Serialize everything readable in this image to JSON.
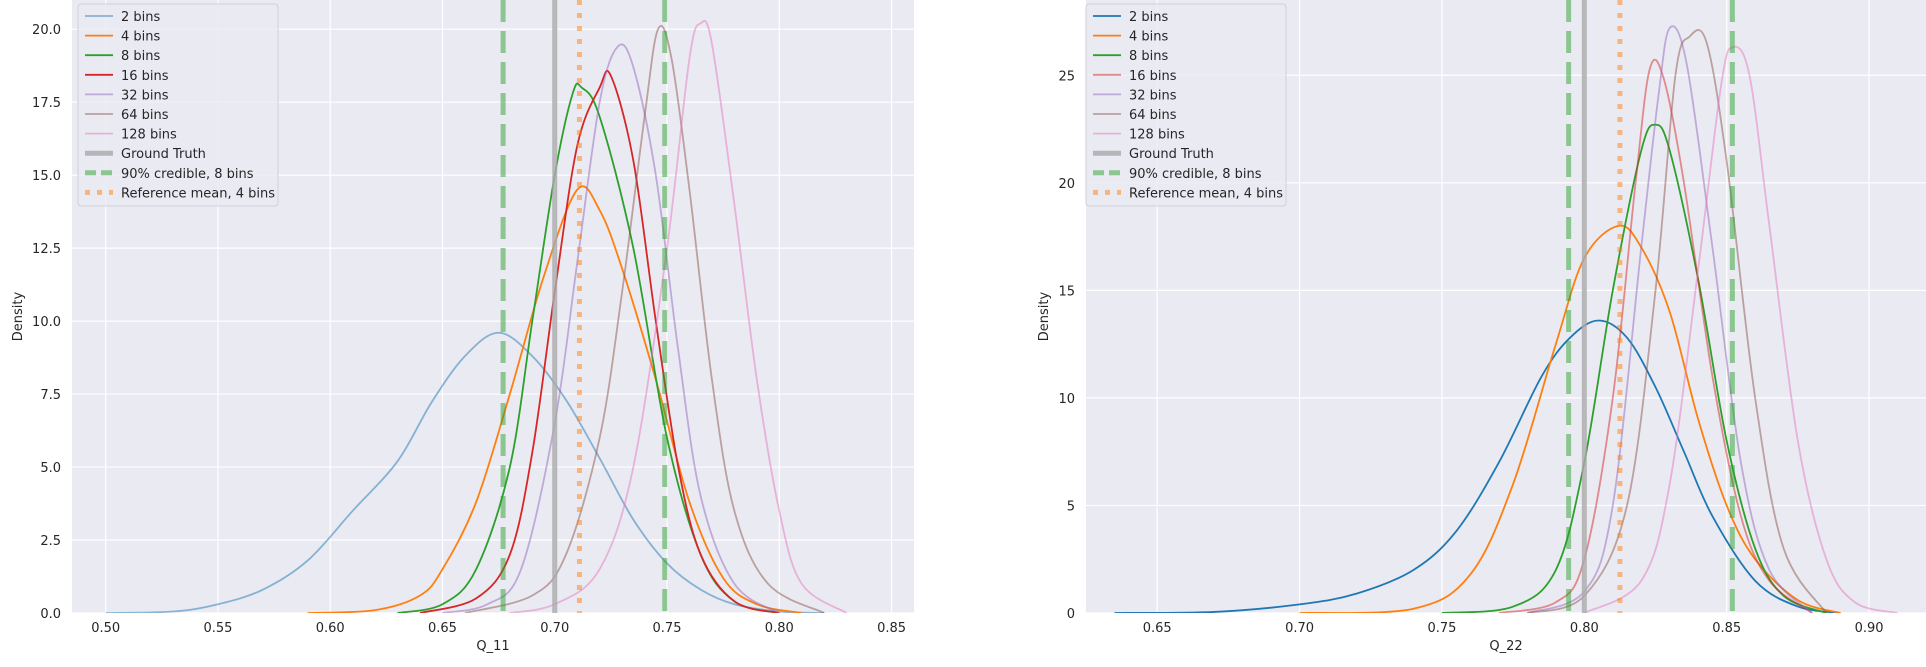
{
  "chart_data": [
    {
      "type": "line",
      "subtype": "kde",
      "xlabel": "Q_11",
      "ylabel": "Density",
      "xlim": [
        0.485,
        0.86
      ],
      "ylim": [
        0,
        21.0
      ],
      "xticks": [
        "0.50",
        "0.55",
        "0.60",
        "0.65",
        "0.70",
        "0.75",
        "0.80",
        "0.85"
      ],
      "yticks": [
        "0.0",
        "2.5",
        "5.0",
        "7.5",
        "10.0",
        "12.5",
        "15.0",
        "17.5",
        "20.0"
      ],
      "grid": true,
      "legend_position": "upper-left",
      "series": [
        {
          "name": "2 bins",
          "color": "#1f77b4",
          "alpha": 0.5,
          "points": [
            [
              0.5,
              0
            ],
            [
              0.53,
              0.05
            ],
            [
              0.55,
              0.3
            ],
            [
              0.57,
              0.8
            ],
            [
              0.59,
              1.8
            ],
            [
              0.61,
              3.5
            ],
            [
              0.63,
              5.2
            ],
            [
              0.645,
              7.2
            ],
            [
              0.66,
              8.8
            ],
            [
              0.675,
              9.6
            ],
            [
              0.69,
              8.8
            ],
            [
              0.705,
              7.3
            ],
            [
              0.72,
              5.3
            ],
            [
              0.735,
              3.2
            ],
            [
              0.75,
              1.7
            ],
            [
              0.765,
              0.8
            ],
            [
              0.78,
              0.3
            ],
            [
              0.8,
              0.05
            ],
            [
              0.82,
              0
            ]
          ]
        },
        {
          "name": "4 bins",
          "color": "#ff7f0e",
          "alpha": 1.0,
          "points": [
            [
              0.59,
              0
            ],
            [
              0.62,
              0.1
            ],
            [
              0.64,
              0.6
            ],
            [
              0.65,
              1.5
            ],
            [
              0.665,
              3.8
            ],
            [
              0.68,
              7.5
            ],
            [
              0.695,
              11.5
            ],
            [
              0.71,
              14.5
            ],
            [
              0.72,
              13.8
            ],
            [
              0.73,
              11.8
            ],
            [
              0.745,
              8.0
            ],
            [
              0.76,
              3.8
            ],
            [
              0.775,
              1.2
            ],
            [
              0.79,
              0.3
            ],
            [
              0.81,
              0
            ]
          ]
        },
        {
          "name": "8 bins",
          "color": "#2ca02c",
          "alpha": 1.0,
          "points": [
            [
              0.63,
              0
            ],
            [
              0.65,
              0.3
            ],
            [
              0.665,
              1.5
            ],
            [
              0.68,
              5.0
            ],
            [
              0.69,
              10.0
            ],
            [
              0.7,
              15.0
            ],
            [
              0.708,
              17.8
            ],
            [
              0.712,
              18.0
            ],
            [
              0.72,
              17.0
            ],
            [
              0.735,
              12.5
            ],
            [
              0.75,
              6.0
            ],
            [
              0.765,
              2.0
            ],
            [
              0.78,
              0.4
            ],
            [
              0.8,
              0
            ]
          ]
        },
        {
          "name": "16 bins",
          "color": "#d62728",
          "alpha": 1.0,
          "points": [
            [
              0.64,
              0
            ],
            [
              0.665,
              0.5
            ],
            [
              0.68,
              2.0
            ],
            [
              0.69,
              5.5
            ],
            [
              0.7,
              11.0
            ],
            [
              0.71,
              16.0
            ],
            [
              0.72,
              18.0
            ],
            [
              0.725,
              18.4
            ],
            [
              0.735,
              15.5
            ],
            [
              0.745,
              10.0
            ],
            [
              0.755,
              5.0
            ],
            [
              0.765,
              2.0
            ],
            [
              0.78,
              0.4
            ],
            [
              0.8,
              0
            ]
          ]
        },
        {
          "name": "32 bins",
          "color": "#9467bd",
          "alpha": 0.5,
          "points": [
            [
              0.65,
              0
            ],
            [
              0.67,
              0.3
            ],
            [
              0.685,
              1.5
            ],
            [
              0.7,
              6.5
            ],
            [
              0.71,
              12.0
            ],
            [
              0.72,
              17.5
            ],
            [
              0.728,
              19.4
            ],
            [
              0.735,
              18.7
            ],
            [
              0.745,
              15.0
            ],
            [
              0.755,
              9.0
            ],
            [
              0.765,
              4.0
            ],
            [
              0.78,
              1.0
            ],
            [
              0.8,
              0
            ]
          ]
        },
        {
          "name": "64 bins",
          "color": "#8c564b",
          "alpha": 0.5,
          "points": [
            [
              0.66,
              0
            ],
            [
              0.69,
              0.6
            ],
            [
              0.705,
              2.0
            ],
            [
              0.72,
              6.0
            ],
            [
              0.73,
              11.0
            ],
            [
              0.74,
              17.0
            ],
            [
              0.746,
              20.0
            ],
            [
              0.752,
              19.0
            ],
            [
              0.76,
              14.5
            ],
            [
              0.77,
              8.0
            ],
            [
              0.78,
              3.5
            ],
            [
              0.795,
              1.0
            ],
            [
              0.82,
              0
            ]
          ]
        },
        {
          "name": "128 bins",
          "color": "#e377c2",
          "alpha": 0.5,
          "points": [
            [
              0.68,
              0
            ],
            [
              0.7,
              0.3
            ],
            [
              0.72,
              1.5
            ],
            [
              0.735,
              5.0
            ],
            [
              0.75,
              12.5
            ],
            [
              0.76,
              19.0
            ],
            [
              0.765,
              20.2
            ],
            [
              0.77,
              19.5
            ],
            [
              0.78,
              14.0
            ],
            [
              0.79,
              8.0
            ],
            [
              0.8,
              3.5
            ],
            [
              0.81,
              1.0
            ],
            [
              0.83,
              0
            ]
          ]
        }
      ],
      "reference_lines": [
        {
          "name": "Ground Truth",
          "x": 0.7,
          "style": "solid",
          "color": "#a9a9a9"
        },
        {
          "name": "90% credible, 8 bins",
          "x": [
            0.677,
            0.749
          ],
          "style": "dashed",
          "color": "#2ca02c"
        },
        {
          "name": "Reference mean, 4 bins",
          "x": 0.711,
          "style": "dotted",
          "color": "#ff7f0e"
        }
      ]
    },
    {
      "type": "line",
      "subtype": "kde",
      "xlabel": "Q_22",
      "ylabel": "Density",
      "xlim": [
        0.625,
        0.92
      ],
      "ylim": [
        0,
        28.5
      ],
      "xticks": [
        "0.65",
        "0.70",
        "0.75",
        "0.80",
        "0.85",
        "0.90"
      ],
      "yticks": [
        "0",
        "5",
        "10",
        "15",
        "20",
        "25"
      ],
      "grid": true,
      "legend_position": "upper-left",
      "series": [
        {
          "name": "2 bins",
          "color": "#1f77b4",
          "alpha": 1.0,
          "points": [
            [
              0.635,
              0
            ],
            [
              0.67,
              0.05
            ],
            [
              0.7,
              0.4
            ],
            [
              0.72,
              0.9
            ],
            [
              0.74,
              2.0
            ],
            [
              0.755,
              3.8
            ],
            [
              0.77,
              7.0
            ],
            [
              0.785,
              11.0
            ],
            [
              0.795,
              12.8
            ],
            [
              0.805,
              13.6
            ],
            [
              0.815,
              12.8
            ],
            [
              0.825,
              10.5
            ],
            [
              0.835,
              7.5
            ],
            [
              0.845,
              4.5
            ],
            [
              0.86,
              1.5
            ],
            [
              0.875,
              0.3
            ],
            [
              0.89,
              0
            ]
          ]
        },
        {
          "name": "4 bins",
          "color": "#ff7f0e",
          "alpha": 1.0,
          "points": [
            [
              0.7,
              0
            ],
            [
              0.74,
              0.2
            ],
            [
              0.76,
              1.8
            ],
            [
              0.775,
              6.0
            ],
            [
              0.79,
              12.5
            ],
            [
              0.8,
              16.5
            ],
            [
              0.812,
              18.0
            ],
            [
              0.82,
              17.0
            ],
            [
              0.83,
              14.0
            ],
            [
              0.84,
              9.0
            ],
            [
              0.85,
              5.0
            ],
            [
              0.86,
              2.5
            ],
            [
              0.875,
              0.6
            ],
            [
              0.89,
              0
            ]
          ]
        },
        {
          "name": "8 bins",
          "color": "#2ca02c",
          "alpha": 1.0,
          "points": [
            [
              0.75,
              0
            ],
            [
              0.775,
              0.3
            ],
            [
              0.79,
              2.0
            ],
            [
              0.8,
              7.0
            ],
            [
              0.81,
              15.0
            ],
            [
              0.82,
              21.5
            ],
            [
              0.825,
              22.7
            ],
            [
              0.83,
              21.5
            ],
            [
              0.84,
              15.5
            ],
            [
              0.85,
              8.0
            ],
            [
              0.86,
              3.0
            ],
            [
              0.87,
              0.8
            ],
            [
              0.885,
              0
            ]
          ]
        },
        {
          "name": "16 bins",
          "color": "#d62728",
          "alpha": 0.5,
          "points": [
            [
              0.77,
              0
            ],
            [
              0.79,
              0.5
            ],
            [
              0.8,
              2.5
            ],
            [
              0.81,
              10.0
            ],
            [
              0.818,
              20.0
            ],
            [
              0.823,
              25.3
            ],
            [
              0.828,
              24.8
            ],
            [
              0.835,
              20.0
            ],
            [
              0.845,
              11.0
            ],
            [
              0.855,
              4.5
            ],
            [
              0.865,
              1.5
            ],
            [
              0.88,
              0
            ]
          ]
        },
        {
          "name": "32 bins",
          "color": "#9467bd",
          "alpha": 0.5,
          "points": [
            [
              0.78,
              0
            ],
            [
              0.8,
              1.0
            ],
            [
              0.81,
              5.0
            ],
            [
              0.82,
              17.0
            ],
            [
              0.826,
              24.0
            ],
            [
              0.83,
              27.2
            ],
            [
              0.836,
              25.5
            ],
            [
              0.845,
              17.0
            ],
            [
              0.855,
              7.0
            ],
            [
              0.865,
              2.0
            ],
            [
              0.88,
              0
            ]
          ]
        },
        {
          "name": "64 bins",
          "color": "#8c564b",
          "alpha": 0.5,
          "points": [
            [
              0.78,
              0
            ],
            [
              0.8,
              0.8
            ],
            [
              0.815,
              5.0
            ],
            [
              0.825,
              15.0
            ],
            [
              0.832,
              25.0
            ],
            [
              0.837,
              26.8
            ],
            [
              0.843,
              26.5
            ],
            [
              0.85,
              21.0
            ],
            [
              0.86,
              10.0
            ],
            [
              0.87,
              3.0
            ],
            [
              0.885,
              0
            ]
          ]
        },
        {
          "name": "128 bins",
          "color": "#e377c2",
          "alpha": 0.5,
          "points": [
            [
              0.8,
              0
            ],
            [
              0.82,
              1.5
            ],
            [
              0.83,
              6.0
            ],
            [
              0.84,
              16.0
            ],
            [
              0.848,
              24.5
            ],
            [
              0.852,
              26.3
            ],
            [
              0.858,
              25.0
            ],
            [
              0.865,
              18.0
            ],
            [
              0.875,
              8.0
            ],
            [
              0.885,
              2.5
            ],
            [
              0.895,
              0.5
            ],
            [
              0.91,
              0
            ]
          ]
        }
      ],
      "reference_lines": [
        {
          "name": "Ground Truth",
          "x": 0.8,
          "style": "solid",
          "color": "#a9a9a9"
        },
        {
          "name": "90% credible, 8 bins",
          "x": [
            0.7945,
            0.852
          ],
          "style": "dashed",
          "color": "#2ca02c"
        },
        {
          "name": "Reference mean, 4 bins",
          "x": 0.8125,
          "style": "dotted",
          "color": "#ff7f0e"
        }
      ]
    }
  ]
}
